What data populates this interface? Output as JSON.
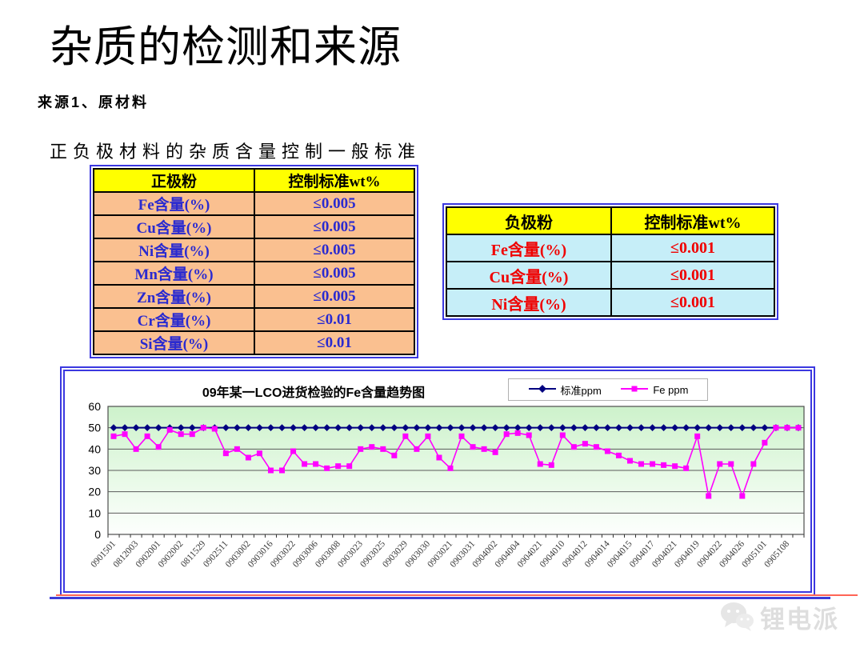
{
  "slide": {
    "title": "杂质的检测和来源",
    "subtitle": "来源1、原材料",
    "table_caption": "正负极材料的杂质含量控制一般标准"
  },
  "cathode_table": {
    "headers": [
      "正极粉",
      "控制标准wt%"
    ],
    "rows": [
      [
        "Fe含量(%)",
        "≤0.005"
      ],
      [
        "Cu含量(%)",
        "≤0.005"
      ],
      [
        "Ni含量(%)",
        "≤0.005"
      ],
      [
        "Mn含量(%)",
        "≤0.005"
      ],
      [
        "Zn含量(%)",
        "≤0.005"
      ],
      [
        "Cr含量(%)",
        "≤0.01"
      ],
      [
        "Si含量(%)",
        "≤0.01"
      ]
    ],
    "colors": {
      "header_bg": "#ffff00",
      "row_bg": "#fac090",
      "text": "#2a2ad0",
      "frame": "#3b38e0"
    }
  },
  "anode_table": {
    "headers": [
      "负极粉",
      "控制标准wt%"
    ],
    "rows": [
      [
        "Fe含量(%)",
        "≤0.001"
      ],
      [
        "Cu含量(%)",
        "≤0.001"
      ],
      [
        "Ni含量(%)",
        "≤0.001"
      ]
    ],
    "colors": {
      "header_bg": "#ffff00",
      "row_bg": "#c6eef8",
      "text": "#f00000",
      "frame": "#3b38e0"
    }
  },
  "chart_data": {
    "type": "line",
    "title": "09年某一LCO进货检验的Fe含量趋势图",
    "ylim": [
      0,
      60
    ],
    "yticks": [
      0,
      10,
      20,
      30,
      40,
      50,
      60
    ],
    "grid": true,
    "legend_position": "top-right",
    "plot_bg_gradient": [
      "#cdf2cb",
      "#fdfffd"
    ],
    "x_label_interval": 2,
    "categories": [
      "0901501",
      "0812003",
      "0902001",
      "0902002",
      "0811529",
      "0902511",
      "0903002",
      "0903016",
      "0903022",
      "0903006",
      "0903008",
      "0903023",
      "0903025",
      "0903029",
      "0903030",
      "0903021",
      "0903031",
      "0904002",
      "0904004",
      "0904021",
      "0904010",
      "0904012",
      "0904014",
      "0904015",
      "0904017",
      "0904021",
      "0904019",
      "0904022",
      "0904026",
      "0905101",
      "0905108"
    ],
    "legend": [
      {
        "name": "标准ppm",
        "color": "#000080",
        "marker": "diamond"
      },
      {
        "name": "Fe ppm",
        "color": "#ff00ff",
        "marker": "square"
      }
    ],
    "series": [
      {
        "name": "标准ppm",
        "color": "#000080",
        "marker": "diamond",
        "value_constant": 50
      },
      {
        "name": "Fe ppm",
        "color": "#ff00ff",
        "marker": "square",
        "values": [
          46,
          47,
          40,
          46,
          41,
          49,
          47,
          47,
          50,
          49.5,
          38,
          40,
          36,
          38,
          30,
          30,
          39,
          33,
          33,
          31,
          32,
          32,
          40,
          41,
          40,
          37,
          46,
          40,
          46,
          36,
          31,
          46,
          41,
          40,
          38.5,
          47,
          47.5,
          46.5,
          33,
          32.5,
          46.5,
          41,
          42.5,
          41,
          39,
          37,
          34.5,
          33,
          33,
          32.5,
          32,
          31,
          46,
          18,
          33,
          33,
          18,
          33,
          43,
          50,
          50,
          50
        ]
      }
    ]
  },
  "watermark": {
    "brand": "锂电派",
    "icon": "wechat-icon"
  }
}
